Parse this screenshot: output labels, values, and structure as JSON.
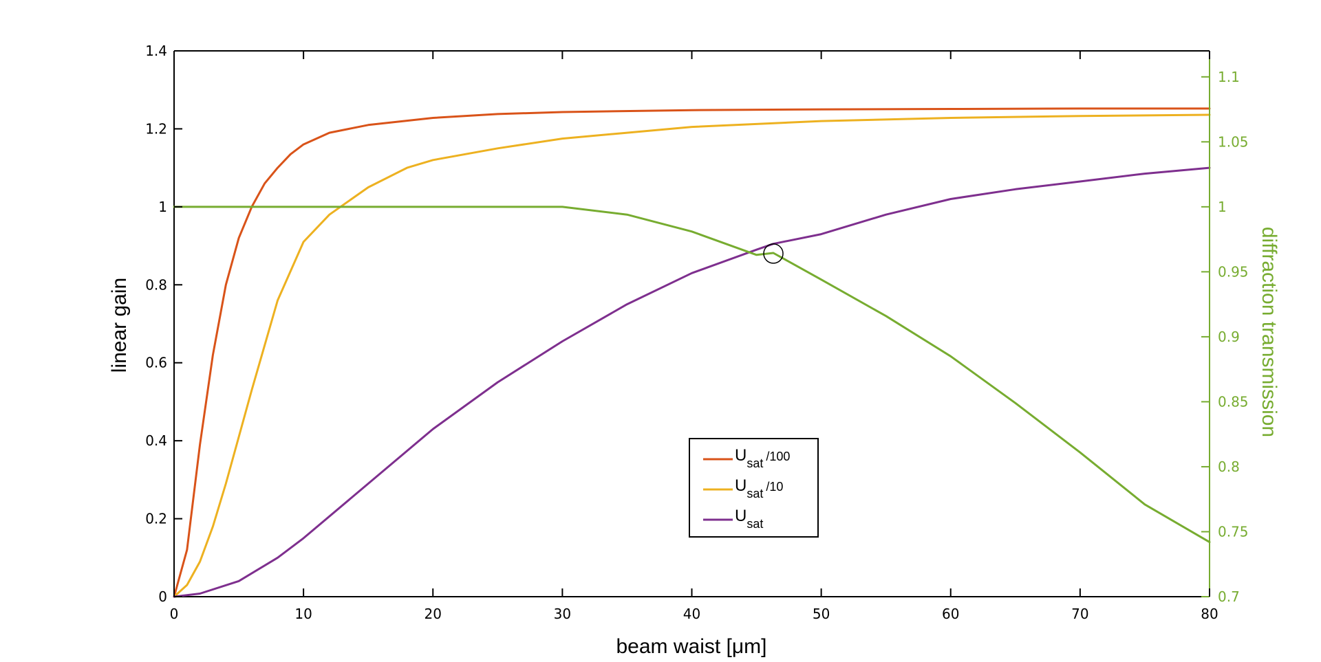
{
  "chart_data": {
    "type": "line",
    "xlabel": "beam waist [μm]",
    "ylabel": "linear gain",
    "y2label": "diffraction transmission",
    "xlim": [
      0,
      80
    ],
    "ylim": [
      0,
      1.4
    ],
    "y2lim": [
      0.7,
      1.12
    ],
    "xticks": [
      "0",
      "10",
      "20",
      "30",
      "40",
      "50",
      "60",
      "70",
      "80"
    ],
    "yticks": [
      "0",
      "0.2",
      "0.4",
      "0.6",
      "0.8",
      "1",
      "1.2",
      "1.4"
    ],
    "y2ticks": [
      "0.7",
      "0.75",
      "0.8",
      "0.85",
      "0.9",
      "0.95",
      "1",
      "1.05",
      "1.1"
    ],
    "grid": false,
    "legend_position": "center-bottom",
    "axis_color": "#000000",
    "y2_color": "#77ac30",
    "series": [
      {
        "name": "U_sat/100",
        "legend": {
          "main": "U",
          "sub": "sat",
          "suffix": "/100"
        },
        "axis": "left",
        "color": "#d95319",
        "x": [
          0,
          1,
          2,
          3,
          4,
          5,
          6,
          7,
          8,
          9,
          10,
          12,
          15,
          20,
          25,
          30,
          40,
          50,
          60,
          70,
          80
        ],
        "y": [
          0,
          0.12,
          0.39,
          0.62,
          0.8,
          0.92,
          1.0,
          1.06,
          1.1,
          1.135,
          1.16,
          1.19,
          1.21,
          1.228,
          1.238,
          1.243,
          1.248,
          1.25,
          1.251,
          1.252,
          1.252
        ]
      },
      {
        "name": "U_sat/10",
        "legend": {
          "main": "U",
          "sub": "sat",
          "suffix": "/10"
        },
        "axis": "left",
        "color": "#edb120",
        "x": [
          0,
          1,
          2,
          3,
          4,
          5,
          6,
          8,
          10,
          12,
          15,
          18,
          20,
          25,
          30,
          35,
          40,
          50,
          60,
          70,
          80
        ],
        "y": [
          0,
          0.03,
          0.09,
          0.18,
          0.29,
          0.41,
          0.53,
          0.76,
          0.91,
          0.98,
          1.05,
          1.1,
          1.12,
          1.15,
          1.175,
          1.19,
          1.205,
          1.22,
          1.228,
          1.233,
          1.236
        ]
      },
      {
        "name": "U_sat",
        "legend": {
          "main": "U",
          "sub": "sat",
          "suffix": ""
        },
        "axis": "left",
        "color": "#7e2f8e",
        "x": [
          0,
          2,
          5,
          8,
          10,
          15,
          20,
          25,
          30,
          35,
          40,
          45,
          46.3,
          50,
          55,
          60,
          65,
          70,
          75,
          80
        ],
        "y": [
          0,
          0.008,
          0.04,
          0.1,
          0.15,
          0.29,
          0.43,
          0.55,
          0.655,
          0.75,
          0.83,
          0.89,
          0.905,
          0.93,
          0.98,
          1.02,
          1.045,
          1.065,
          1.085,
          1.1
        ]
      },
      {
        "name": "diffraction transmission",
        "axis": "right",
        "color": "#77ac30",
        "x": [
          0,
          30,
          35,
          40,
          45,
          46.3,
          50,
          55,
          60,
          65,
          70,
          75,
          80
        ],
        "y": [
          1.0,
          1.0,
          0.994,
          0.981,
          0.963,
          0.9645,
          0.944,
          0.916,
          0.885,
          0.849,
          0.811,
          0.771,
          0.742
        ]
      }
    ],
    "annotations": [
      {
        "type": "circle",
        "x": 46.3,
        "y": 0.88,
        "axis": "left"
      }
    ]
  }
}
